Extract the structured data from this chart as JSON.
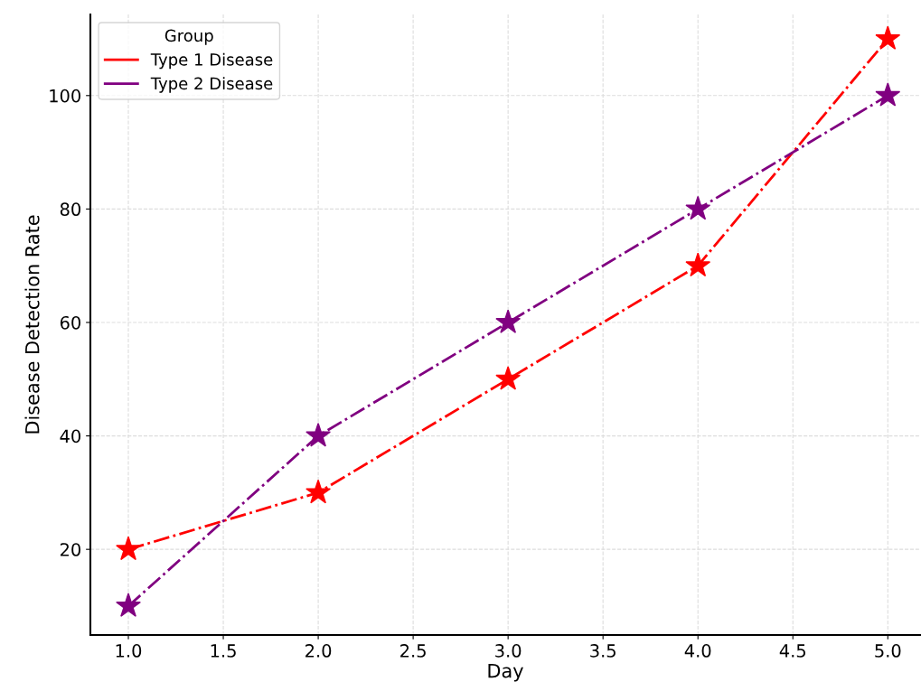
{
  "chart_data": {
    "type": "line",
    "xlabel": "Day",
    "ylabel": "Disease Detection Rate",
    "legend_title": "Group",
    "x": [
      1,
      2,
      3,
      4,
      5
    ],
    "series": [
      {
        "name": "Type 1 Disease",
        "color": "#ff0000",
        "values": [
          20,
          30,
          50,
          70,
          110
        ]
      },
      {
        "name": "Type 2 Disease",
        "color": "#800080",
        "values": [
          10,
          40,
          60,
          80,
          100
        ]
      }
    ],
    "xlim": [
      0.8,
      5.17
    ],
    "ylim": [
      4.9,
      114.3
    ],
    "xticks": [
      {
        "value": 1,
        "label": "1.0"
      },
      {
        "value": 1.5,
        "label": "1.5"
      },
      {
        "value": 2,
        "label": "2.0"
      },
      {
        "value": 2.5,
        "label": "2.5"
      },
      {
        "value": 3,
        "label": "3.0"
      },
      {
        "value": 3.5,
        "label": "3.5"
      },
      {
        "value": 4,
        "label": "4.0"
      },
      {
        "value": 4.5,
        "label": "4.5"
      },
      {
        "value": 5,
        "label": "5.0"
      }
    ],
    "yticks": [
      20,
      40,
      60,
      80,
      100
    ],
    "grid": true,
    "legend": "top left",
    "marker": "star",
    "line_style": "dashdot"
  }
}
